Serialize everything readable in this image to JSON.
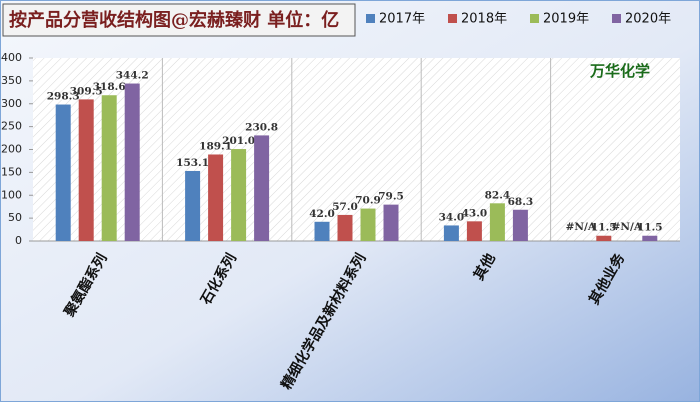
{
  "chart_data": {
    "type": "bar",
    "title": "按产品分营收结构图@宏赫臻财 单位：亿",
    "annotation": "万华化学",
    "categories": [
      "聚氨酯系列",
      "石化系列",
      "精细化学品及新材料系列",
      "其他",
      "其他业务"
    ],
    "series": [
      {
        "name": "2017年",
        "color": "#4f81bd",
        "values": [
          298.3,
          153.1,
          42.0,
          34.0,
          null
        ],
        "value_labels": [
          "298.3",
          "153.1",
          "42.0",
          "34.0",
          "#N/A"
        ]
      },
      {
        "name": "2018年",
        "color": "#c0504d",
        "values": [
          309.5,
          189.1,
          57.0,
          43.0,
          11.5
        ],
        "value_labels": [
          "309.5",
          "189.1",
          "57.0",
          "43.0",
          "11.5"
        ]
      },
      {
        "name": "2019年",
        "color": "#9bbb59",
        "values": [
          318.6,
          201.0,
          70.9,
          82.4,
          null
        ],
        "value_labels": [
          "318.6",
          "201.0",
          "70.9",
          "82.4",
          "#N/A"
        ]
      },
      {
        "name": "2020年",
        "color": "#8064a2",
        "values": [
          344.2,
          230.8,
          79.5,
          68.3,
          11.5
        ],
        "value_labels": [
          "344.2",
          "230.8",
          "79.5",
          "68.3",
          "11.5"
        ]
      }
    ],
    "ylim": [
      0,
      400
    ],
    "yticks": [
      0,
      50,
      100,
      150,
      200,
      250,
      300,
      350,
      400
    ],
    "grid": false
  }
}
